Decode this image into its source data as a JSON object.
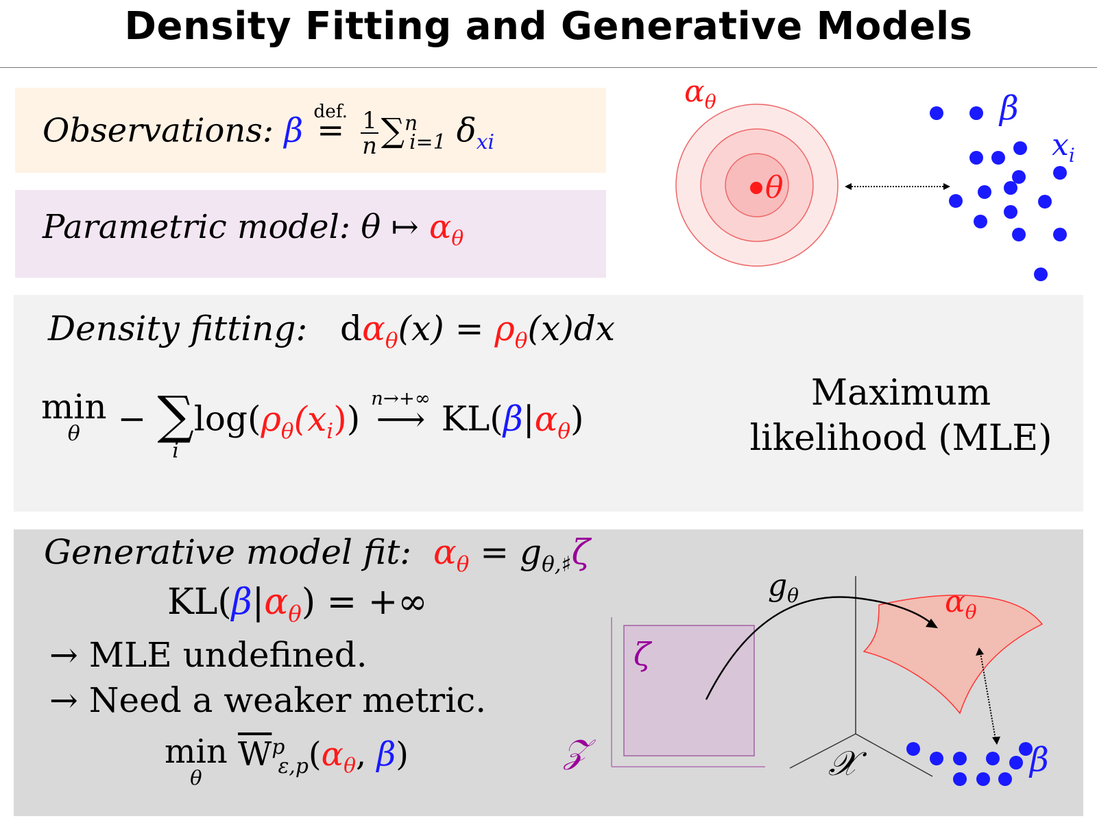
{
  "title": "Density Fitting and Generative Models",
  "observations": {
    "label": "Observations:",
    "beta": "β",
    "defeq": "=",
    "def_label": "def.",
    "frac_num": "1",
    "frac_den": "n",
    "sum": "∑",
    "sum_lower": "i=1",
    "sum_upper": "n",
    "delta": "δ",
    "delta_sub": "xi"
  },
  "parametric": {
    "label": "Parametric model:",
    "theta": "θ",
    "mapsto": "↦",
    "alpha": "α",
    "alpha_sub": "θ"
  },
  "density": {
    "label": "Density fitting:",
    "eq_d1": "d",
    "alpha": "α",
    "theta": "θ",
    "eq_mid": "(x) = ",
    "rho": "ρ",
    "eq_end": "(x)dx",
    "min": "min",
    "min_sub": "θ",
    "minus": "−",
    "sum": "∑",
    "sum_sub": "i",
    "log_open": "log(",
    "rho_xi": "(x",
    "xi_sub": "i",
    "close_paren": ")",
    "log_close": ")",
    "limit_over": "n→+∞",
    "arrow": "⟶",
    "kl_open": "KL(",
    "beta": "β",
    "bar": "|",
    "kl_close": ")",
    "mle_line1": "Maximum",
    "mle_line2": "likelihood (MLE)"
  },
  "generative": {
    "label": "Generative model fit:",
    "alpha": "α",
    "theta": "θ",
    "eq": " = g",
    "g_sub": "θ,♯",
    "zeta": "ζ",
    "kl_open": "KL(",
    "beta": "β",
    "bar": "|",
    "kl_close": ") = +∞",
    "bullet1": "→ MLE undefined.",
    "bullet2": "→ Need a weaker metric.",
    "min": "min",
    "min_sub": "θ",
    "w": "W",
    "w_sup": "p",
    "w_sub": "ε,p",
    "comma": ", "
  },
  "figure_top": {
    "alpha_label": "α",
    "alpha_sub": "θ",
    "theta_label": "θ",
    "beta_label": "β",
    "xi_label": "x",
    "xi_sub": "i"
  },
  "figure_bottom": {
    "g_label": "g",
    "g_sub": "θ",
    "alpha_label": "α",
    "alpha_sub": "θ",
    "zeta_label": "ζ",
    "z_label": "𝒵",
    "x_label": "𝒳",
    "beta_label": "β"
  },
  "colors": {
    "model_red": "#ff1a1a",
    "data_blue": "#1a1aff",
    "latent_purple": "#990099",
    "obs_panel": "#fff3e6",
    "param_panel": "#f3e6f3",
    "density_panel": "#f2f2f2",
    "generative_panel": "#d9d9d9"
  }
}
